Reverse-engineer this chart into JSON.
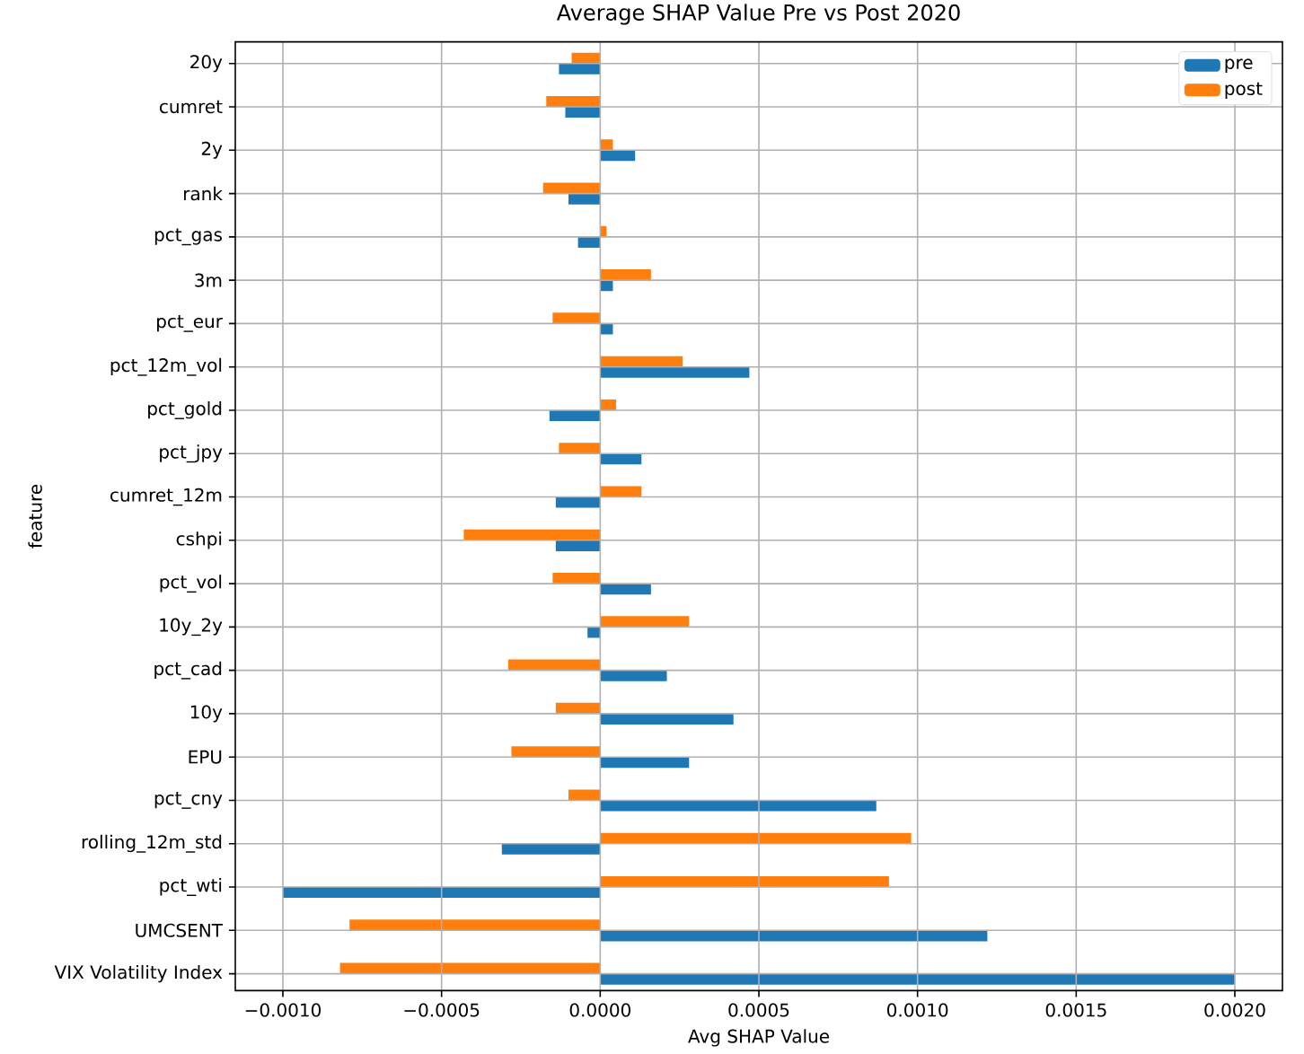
{
  "chart_data": {
    "type": "bar",
    "orientation": "horizontal",
    "title": "Average SHAP Value Pre vs Post 2020",
    "xlabel": "Avg SHAP Value",
    "ylabel": "feature",
    "categories": [
      "20y",
      "cumret",
      "2y",
      "rank",
      "pct_gas",
      "3m",
      "pct_eur",
      "pct_12m_vol",
      "pct_gold",
      "pct_jpy",
      "cumret_12m",
      "cshpi",
      "pct_vol",
      "10y_2y",
      "pct_cad",
      "10y",
      "EPU",
      "pct_cny",
      "rolling_12m_std",
      "pct_wti",
      "UMCSENT",
      "VIX Volatility Index"
    ],
    "series": [
      {
        "name": "pre",
        "color": "#1f77b4",
        "values": [
          -0.00013,
          -0.00011,
          0.00011,
          -0.0001,
          -7e-05,
          4e-05,
          4e-05,
          0.00047,
          -0.00016,
          0.00013,
          -0.00014,
          -0.00014,
          0.00016,
          -4e-05,
          0.00021,
          0.00042,
          0.00028,
          0.00087,
          -0.00031,
          -0.001,
          0.00122,
          0.002
        ]
      },
      {
        "name": "post",
        "color": "#ff7f0e",
        "values": [
          -9e-05,
          -0.00017,
          4e-05,
          -0.00018,
          2e-05,
          0.00016,
          -0.00015,
          0.00026,
          5e-05,
          -0.00013,
          0.00013,
          -0.00043,
          -0.00015,
          0.00028,
          -0.00029,
          -0.00014,
          -0.00028,
          -0.0001,
          0.00098,
          0.00091,
          -0.00079,
          -0.00082
        ]
      }
    ],
    "xlim": [
      -0.00115,
      0.00215
    ],
    "xticks": [
      {
        "value": -0.001,
        "label": "−0.0010"
      },
      {
        "value": -0.0005,
        "label": "−0.0005"
      },
      {
        "value": 0,
        "label": "0.0000"
      },
      {
        "value": 0.0005,
        "label": "0.0005"
      },
      {
        "value": 0.001,
        "label": "0.0010"
      },
      {
        "value": 0.0015,
        "label": "0.0015"
      },
      {
        "value": 0.002,
        "label": "0.0020"
      }
    ],
    "grid": true,
    "legend": "top right"
  }
}
